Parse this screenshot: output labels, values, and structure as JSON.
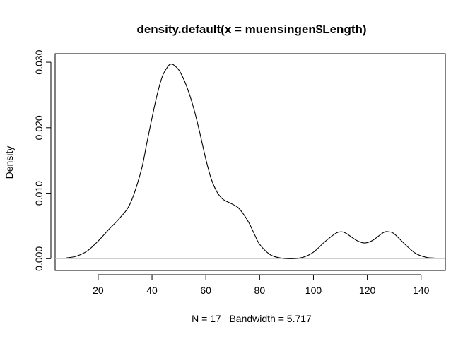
{
  "chart_data": {
    "type": "line",
    "title": "density.default(x = muensingen$Length)",
    "xlabel": "N = 17   Bandwidth = 5.717",
    "ylabel": "Density",
    "xlim": [
      4,
      149
    ],
    "ylim": [
      -0.0018,
      0.0313
    ],
    "xticks": [
      20,
      40,
      60,
      80,
      100,
      120,
      140
    ],
    "yticks": [
      0.0,
      0.01,
      0.02,
      0.03
    ],
    "xtick_labels": [
      "20",
      "40",
      "60",
      "80",
      "100",
      "120",
      "140"
    ],
    "ytick_labels": [
      "0.000",
      "0.010",
      "0.020",
      "0.030"
    ],
    "grid": false,
    "zero_line": true,
    "series": [
      {
        "x": [
          8,
          12,
          16,
          20,
          24,
          28,
          32,
          36,
          38,
          40,
          42,
          44,
          46,
          47,
          48,
          50,
          52,
          54,
          56,
          58,
          60,
          62,
          64,
          66,
          68,
          70,
          72,
          74,
          76,
          78,
          80,
          84,
          88,
          92,
          96,
          100,
          104,
          108,
          110,
          112,
          116,
          119,
          122,
          126,
          128,
          130,
          134,
          138,
          142,
          145
        ],
        "y": [
          0.0001,
          0.0004,
          0.0012,
          0.0027,
          0.0045,
          0.0062,
          0.0085,
          0.0135,
          0.0175,
          0.0215,
          0.0252,
          0.028,
          0.0294,
          0.0297,
          0.0296,
          0.0288,
          0.0272,
          0.025,
          0.0222,
          0.0188,
          0.0152,
          0.0122,
          0.0103,
          0.0092,
          0.0087,
          0.0083,
          0.0078,
          0.0068,
          0.0055,
          0.0038,
          0.0022,
          0.0006,
          0.0001,
          0.0,
          0.0002,
          0.001,
          0.0025,
          0.0038,
          0.0041,
          0.0039,
          0.0028,
          0.0024,
          0.0028,
          0.004,
          0.0041,
          0.0038,
          0.0022,
          0.0008,
          0.0002,
          0.0001
        ]
      }
    ]
  }
}
